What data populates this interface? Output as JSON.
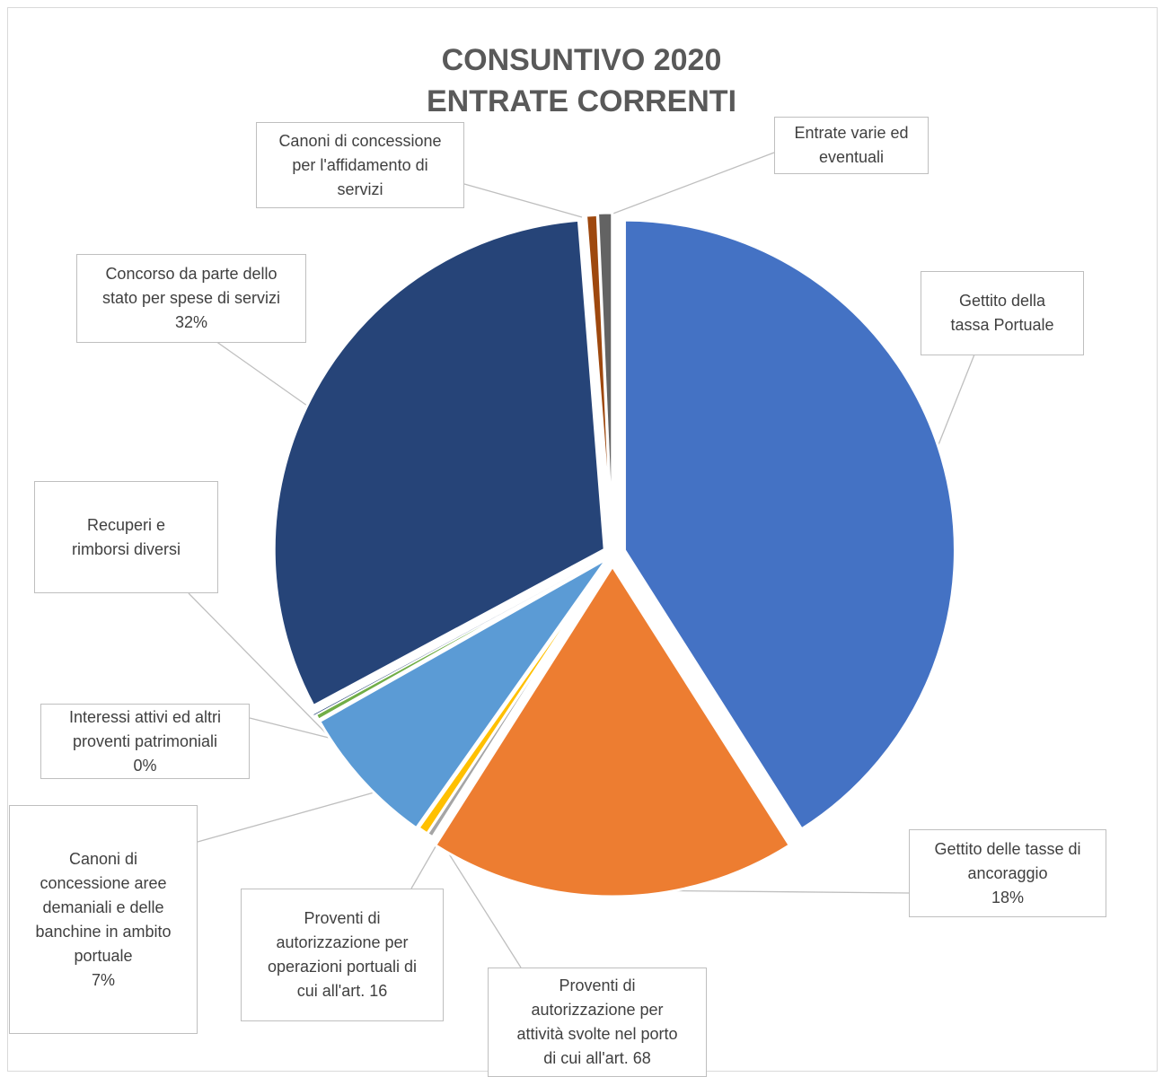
{
  "chart_data": {
    "type": "pie",
    "title": [
      "CONSUNTIVO 2020",
      "ENTRATE CORRENTI"
    ],
    "slices": [
      {
        "name": "Gettito della\ntassa Portuale",
        "value": 41.0,
        "percent_label": "",
        "color": "#4472c4"
      },
      {
        "name": "Gettito delle tasse di\nancoraggio",
        "value": 18.0,
        "percent_label": "18%",
        "color": "#ed7d31"
      },
      {
        "name": "Proventi di\nautorizzazione per\nattività svolte nel porto\ndi cui all'art. 68",
        "value": 0.3,
        "percent_label": "",
        "color": "#a5a5a5"
      },
      {
        "name": "Proventi di\nautorizzazione per\noperazioni portuali di\ncui all'art. 16",
        "value": 0.5,
        "percent_label": "",
        "color": "#ffc000"
      },
      {
        "name": "Canoni di\nconcessione aree\ndemaniali e delle\nbanchine in ambito\nportuale",
        "value": 7.0,
        "percent_label": "7%",
        "color": "#5b9bd5"
      },
      {
        "name": "Interessi attivi ed altri\nproventi patrimoniali",
        "value": 0.3,
        "percent_label": "0%",
        "color": "#70ad47"
      },
      {
        "name": "Recuperi e\nrimborsi diversi",
        "value": 0.05,
        "percent_label": "",
        "color": "#264478"
      },
      {
        "name": "Concorso da parte dello\nstato per spese di servizi",
        "value": 31.6,
        "percent_label": "32%",
        "color": "#264478"
      },
      {
        "name": "Canoni di concessione\nper l'affidamento di\nservizi",
        "value": 0.55,
        "percent_label": "",
        "color": "#9e480e"
      },
      {
        "name": "Entrate varie ed\neventuali",
        "value": 0.7,
        "percent_label": "",
        "color": "#636363"
      }
    ]
  }
}
